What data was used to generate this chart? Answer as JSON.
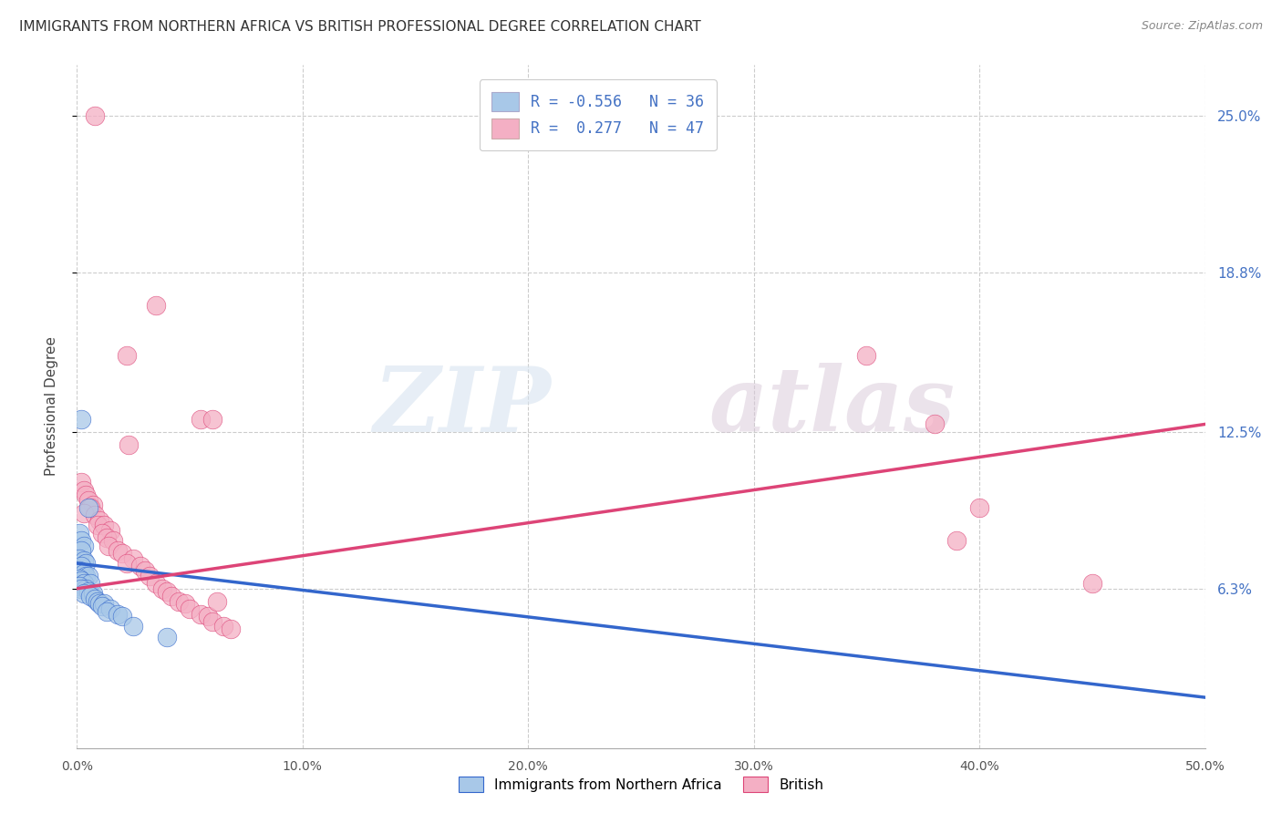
{
  "title": "IMMIGRANTS FROM NORTHERN AFRICA VS BRITISH PROFESSIONAL DEGREE CORRELATION CHART",
  "source": "Source: ZipAtlas.com",
  "ylabel": "Professional Degree",
  "ytick_labels": [
    "6.3%",
    "12.5%",
    "18.8%",
    "25.0%"
  ],
  "ytick_values": [
    0.063,
    0.125,
    0.188,
    0.25
  ],
  "xtick_labels": [
    "0.0%",
    "10.0%",
    "20.0%",
    "30.0%",
    "40.0%",
    "50.0%"
  ],
  "xtick_values": [
    0.0,
    0.1,
    0.2,
    0.3,
    0.4,
    0.5
  ],
  "xlim": [
    0.0,
    0.5
  ],
  "ylim": [
    0.0,
    0.27
  ],
  "legend_line1": "R = -0.556   N = 36",
  "legend_line2": "R =  0.277   N = 47",
  "color_blue": "#a8c8e8",
  "color_pink": "#f4afc4",
  "line_blue": "#3366cc",
  "line_pink": "#dd4477",
  "watermark_zip": "ZIP",
  "watermark_atlas": "atlas",
  "blue_scatter": [
    [
      0.002,
      0.13
    ],
    [
      0.005,
      0.095
    ],
    [
      0.001,
      0.085
    ],
    [
      0.002,
      0.082
    ],
    [
      0.003,
      0.08
    ],
    [
      0.002,
      0.078
    ],
    [
      0.001,
      0.075
    ],
    [
      0.003,
      0.074
    ],
    [
      0.004,
      0.073
    ],
    [
      0.002,
      0.072
    ],
    [
      0.001,
      0.07
    ],
    [
      0.003,
      0.069
    ],
    [
      0.004,
      0.068
    ],
    [
      0.005,
      0.068
    ],
    [
      0.001,
      0.067
    ],
    [
      0.002,
      0.066
    ],
    [
      0.003,
      0.065
    ],
    [
      0.006,
      0.065
    ],
    [
      0.001,
      0.064
    ],
    [
      0.004,
      0.063
    ],
    [
      0.002,
      0.063
    ],
    [
      0.005,
      0.062
    ],
    [
      0.003,
      0.061
    ],
    [
      0.007,
      0.061
    ],
    [
      0.006,
      0.06
    ],
    [
      0.008,
      0.059
    ],
    [
      0.009,
      0.058
    ],
    [
      0.01,
      0.057
    ],
    [
      0.012,
      0.057
    ],
    [
      0.011,
      0.056
    ],
    [
      0.015,
      0.055
    ],
    [
      0.013,
      0.054
    ],
    [
      0.018,
      0.053
    ],
    [
      0.02,
      0.052
    ],
    [
      0.025,
      0.048
    ],
    [
      0.04,
      0.044
    ]
  ],
  "pink_scatter": [
    [
      0.008,
      0.25
    ],
    [
      0.035,
      0.175
    ],
    [
      0.022,
      0.155
    ],
    [
      0.35,
      0.155
    ],
    [
      0.055,
      0.13
    ],
    [
      0.06,
      0.13
    ],
    [
      0.38,
      0.128
    ],
    [
      0.023,
      0.12
    ],
    [
      0.4,
      0.095
    ],
    [
      0.39,
      0.082
    ],
    [
      0.45,
      0.065
    ],
    [
      0.002,
      0.105
    ],
    [
      0.003,
      0.102
    ],
    [
      0.004,
      0.1
    ],
    [
      0.005,
      0.098
    ],
    [
      0.007,
      0.096
    ],
    [
      0.006,
      0.095
    ],
    [
      0.003,
      0.093
    ],
    [
      0.008,
      0.092
    ],
    [
      0.01,
      0.09
    ],
    [
      0.009,
      0.088
    ],
    [
      0.012,
      0.088
    ],
    [
      0.015,
      0.086
    ],
    [
      0.011,
      0.085
    ],
    [
      0.013,
      0.083
    ],
    [
      0.016,
      0.082
    ],
    [
      0.014,
      0.08
    ],
    [
      0.018,
      0.078
    ],
    [
      0.02,
      0.077
    ],
    [
      0.025,
      0.075
    ],
    [
      0.022,
      0.073
    ],
    [
      0.028,
      0.072
    ],
    [
      0.03,
      0.07
    ],
    [
      0.032,
      0.068
    ],
    [
      0.035,
      0.065
    ],
    [
      0.038,
      0.063
    ],
    [
      0.04,
      0.062
    ],
    [
      0.042,
      0.06
    ],
    [
      0.045,
      0.058
    ],
    [
      0.048,
      0.057
    ],
    [
      0.05,
      0.055
    ],
    [
      0.055,
      0.053
    ],
    [
      0.058,
      0.052
    ],
    [
      0.06,
      0.05
    ],
    [
      0.062,
      0.058
    ],
    [
      0.065,
      0.048
    ],
    [
      0.068,
      0.047
    ]
  ],
  "blue_trend_x": [
    0.0,
    0.5
  ],
  "blue_trend_y": [
    0.073,
    0.02
  ],
  "pink_trend_x": [
    0.0,
    0.5
  ],
  "pink_trend_y": [
    0.063,
    0.128
  ]
}
